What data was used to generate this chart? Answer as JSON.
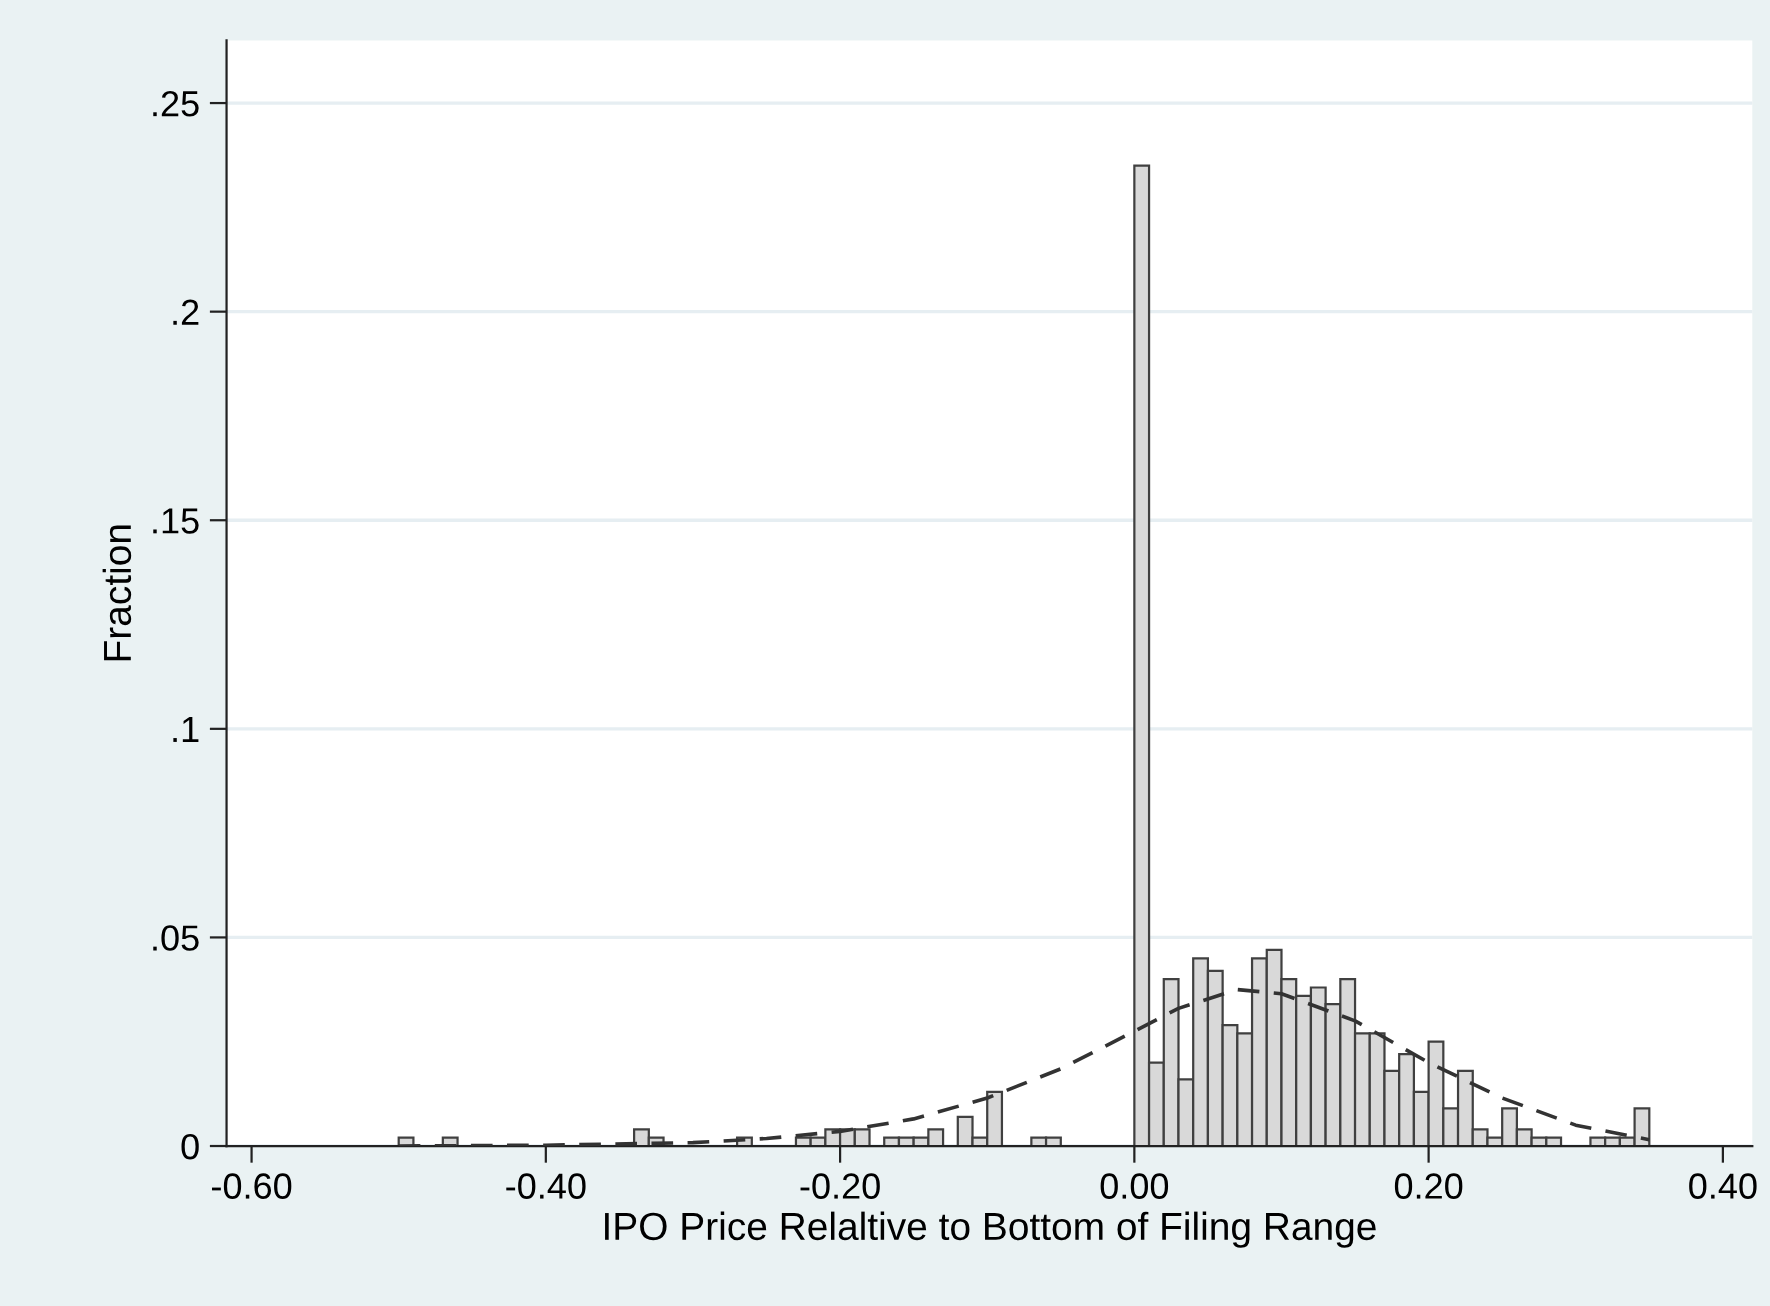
{
  "chart_data": {
    "type": "histogram",
    "xlabel": "IPO Price Relaltive to Bottom of Filing Range",
    "ylabel": "Fraction",
    "xlim": [
      -0.617,
      0.42
    ],
    "ylim": [
      0,
      0.265
    ],
    "xticks": [
      {
        "value": -0.6,
        "label": "-0.60"
      },
      {
        "value": -0.4,
        "label": "-0.40"
      },
      {
        "value": -0.2,
        "label": "-0.20"
      },
      {
        "value": 0.0,
        "label": "0.00"
      },
      {
        "value": 0.2,
        "label": "0.20"
      },
      {
        "value": 0.4,
        "label": "0.40"
      }
    ],
    "yticks": [
      0,
      {
        "value": 0.05,
        "label": ".05"
      },
      {
        "value": 0.1,
        "label": ".1"
      },
      {
        "value": 0.15,
        "label": ".15"
      },
      {
        "value": 0.2,
        "label": ".2"
      },
      {
        "value": 0.25,
        "label": ".25"
      }
    ],
    "grid": "y",
    "legend": false,
    "series": [
      {
        "color": "#d9d9d9",
        "bins": [
          -0.5,
          -0.49,
          -0.48,
          -0.47,
          -0.46,
          -0.45,
          -0.44,
          -0.43,
          -0.42,
          -0.41,
          -0.4,
          -0.39,
          -0.38,
          -0.37,
          -0.36,
          -0.35,
          -0.34,
          -0.33,
          -0.32,
          -0.31,
          -0.3,
          -0.29,
          -0.28,
          -0.27,
          -0.26,
          -0.25,
          -0.24,
          -0.23,
          -0.22,
          -0.21,
          -0.2,
          -0.19,
          -0.18,
          -0.17,
          -0.16,
          -0.15,
          -0.14,
          -0.13,
          -0.12,
          -0.11,
          -0.1,
          -0.09,
          -0.08,
          -0.07,
          -0.06,
          -0.05,
          -0.04,
          -0.03,
          -0.02,
          -0.01,
          0.0,
          0.01,
          0.02,
          0.03,
          0.04,
          0.05,
          0.06,
          0.07,
          0.08,
          0.09,
          0.1,
          0.11,
          0.12,
          0.13,
          0.14,
          0.15,
          0.16,
          0.17,
          0.18,
          0.19,
          0.2,
          0.21,
          0.22,
          0.23,
          0.24,
          0.25,
          0.26,
          0.27,
          0.28,
          0.29,
          0.3,
          0.31,
          0.32,
          0.33,
          0.34,
          0.35
        ],
        "values": [
          0.002,
          0,
          0,
          0.002,
          0,
          0,
          0,
          0,
          0,
          0,
          0,
          0,
          0,
          0,
          0,
          0,
          0.004,
          0.002,
          0,
          0,
          0,
          0,
          0,
          0.002,
          0,
          0,
          0,
          0.002,
          0.002,
          0.004,
          0.004,
          0.004,
          0,
          0.002,
          0.002,
          0.002,
          0.004,
          0,
          0.007,
          0.002,
          0.013,
          0,
          0,
          0.002,
          0.002,
          0,
          0,
          0,
          0,
          0,
          0.235,
          0.02,
          0.04,
          0.016,
          0.045,
          0.042,
          0.029,
          0.027,
          0.045,
          0.047,
          0.04,
          0.036,
          0.038,
          0.034,
          0.04,
          0.027,
          0.027,
          0.018,
          0.022,
          0.013,
          0.025,
          0.009,
          0.018,
          0.004,
          0.002,
          0.009,
          0.004,
          0.002,
          0.002,
          0,
          0,
          0.002,
          0.002,
          0.002,
          0.009
        ]
      },
      {
        "type": "line",
        "color": "#333333",
        "line_style": "dashed",
        "marker": "none",
        "x": [
          -0.5,
          -0.4,
          -0.3,
          -0.25,
          -0.2,
          -0.15,
          -0.1,
          -0.05,
          0.0,
          0.03,
          0.07,
          0.1,
          0.15,
          0.2,
          0.25,
          0.3,
          0.35
        ],
        "values": [
          0.0,
          0.0002,
          0.0008,
          0.0018,
          0.0035,
          0.0065,
          0.0115,
          0.0185,
          0.0275,
          0.033,
          0.0375,
          0.0365,
          0.03,
          0.02,
          0.0115,
          0.005,
          0.0015
        ]
      }
    ]
  }
}
